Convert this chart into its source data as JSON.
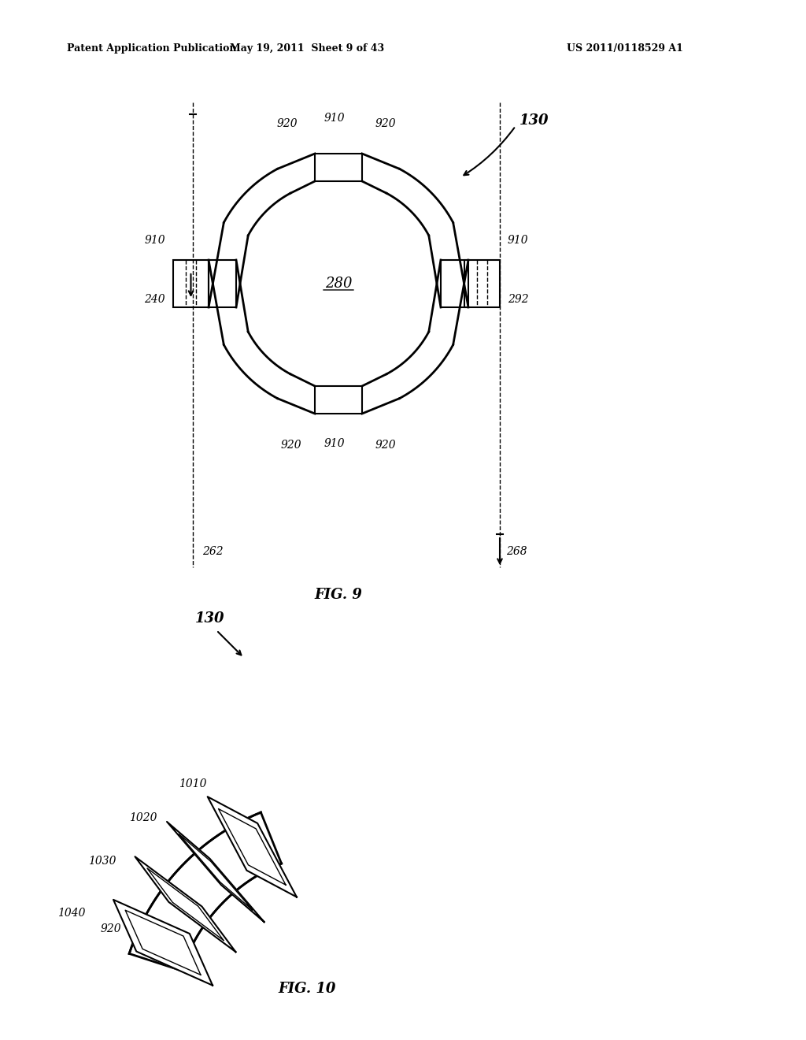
{
  "bg_color": "#ffffff",
  "line_color": "#000000",
  "header_left": "Patent Application Publication",
  "header_mid": "May 19, 2011  Sheet 9 of 43",
  "header_right": "US 2011/0118529 A1",
  "fig9_label": "FIG. 9",
  "fig10_label": "FIG. 10",
  "label_130_top": "130",
  "label_280": "280",
  "label_910_top": "910",
  "label_920_topleft": "920",
  "label_920_topright": "920",
  "label_910_left": "910",
  "label_910_right": "910",
  "label_240": "240",
  "label_292": "292",
  "label_910_bot": "910",
  "label_920_botleft": "920",
  "label_920_botright": "920",
  "label_262": "262",
  "label_268": "268",
  "label_130_bot": "130",
  "label_1010": "1010",
  "label_1020": "1020",
  "label_1030": "1030",
  "label_1040": "1040",
  "label_920_fig10": "920"
}
